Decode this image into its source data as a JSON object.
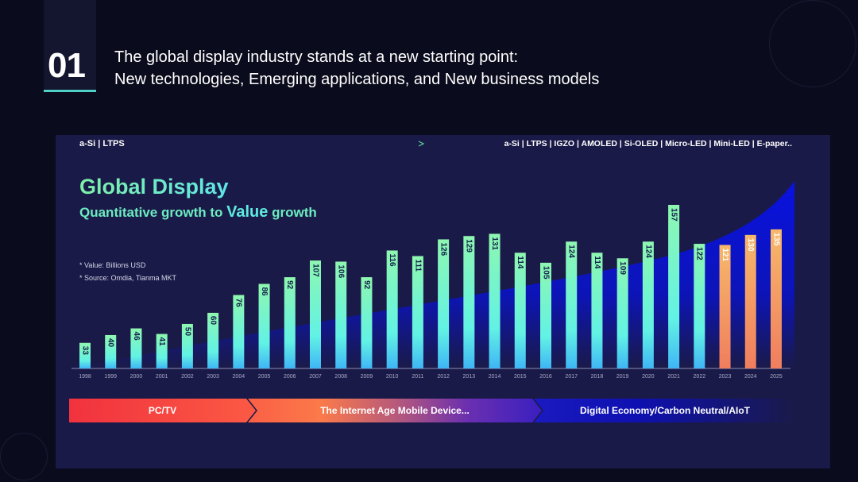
{
  "header": {
    "number": "01",
    "line1": "The global display industry stands at a new starting point:",
    "line2": "New technologies, Emerging applications, and New business models"
  },
  "tech": {
    "left": "a-Si | LTPS",
    "right": "a-Si | LTPS | IGZO | AMOLED | Si-OLED | Micro-LED | Mini-LED | E-paper.."
  },
  "title": "Global Display",
  "subtitle": {
    "part1": "Quantitative growth to ",
    "part2": "Value",
    "part3": " growth"
  },
  "notes": [
    "* Value: Billions USD",
    "* Source: Omdia, Tianma MKT"
  ],
  "phases": [
    "PC/TV",
    "The Internet Age Mobile Device...",
    "Digital Economy/Carbon Neutral/AIoT"
  ],
  "colors": {
    "actual_top": "#8ef7b0",
    "actual_bottom": "#3fb6f5",
    "forecast_top": "#f7b86a",
    "forecast_bottom": "#f07e5e",
    "area": "#0a12d8"
  },
  "chart_data": {
    "type": "bar",
    "title": "Global Display",
    "ylabel": "Value (Billions USD)",
    "categories": [
      "1998",
      "1999",
      "2000",
      "2001",
      "2002",
      "2003",
      "2004",
      "2005",
      "2006",
      "2007",
      "2008",
      "2009",
      "2010",
      "2011",
      "2012",
      "2013",
      "2014",
      "2015",
      "2016",
      "2017",
      "2018",
      "2019",
      "2020",
      "2021",
      "2022",
      "2023",
      "2024",
      "2025"
    ],
    "values": [
      33,
      40,
      46,
      41,
      50,
      60,
      76,
      86,
      92,
      107,
      106,
      92,
      116,
      111,
      126,
      129,
      131,
      114,
      105,
      124,
      114,
      109,
      124,
      157,
      122,
      121,
      130,
      135
    ],
    "forecast_from": "2023",
    "ylim": [
      10,
      157
    ]
  }
}
